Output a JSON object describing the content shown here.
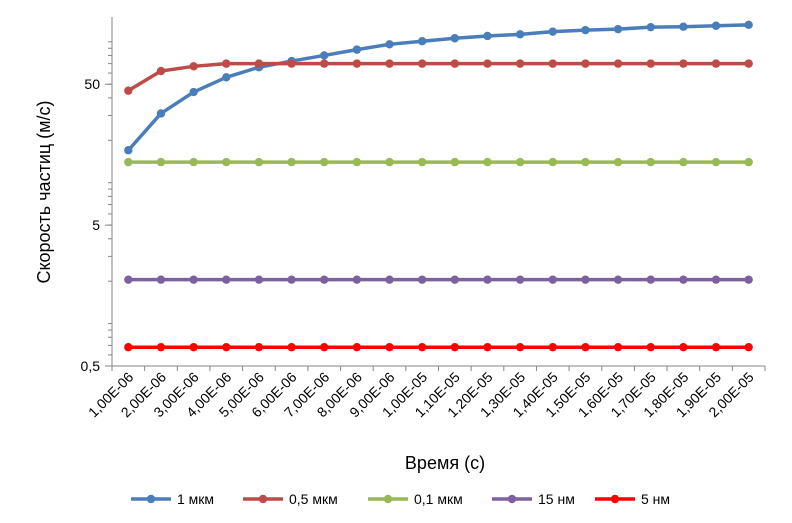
{
  "chart_data": {
    "type": "line",
    "title": "",
    "xlabel": "Время (с)",
    "ylabel": "Скорость частиц (м/с)",
    "yscale": "log",
    "ylim": [
      0.5,
      150
    ],
    "yticks": [
      {
        "value": 0.5,
        "label": "0,5"
      },
      {
        "value": 5,
        "label": "5"
      },
      {
        "value": 50,
        "label": "50"
      }
    ],
    "categories": [
      "1,00E-06",
      "2,00E-06",
      "3,00E-06",
      "4,00E-06",
      "5,00E-06",
      "6,00E-06",
      "7,00E-06",
      "8,00E-06",
      "9,00E-06",
      "1,00E-05",
      "1,10E-05",
      "1,20E-05",
      "1,30E-05",
      "1,40E-05",
      "1,50E-05",
      "1,60E-05",
      "1,70E-05",
      "1,80E-05",
      "1,90E-05",
      "2,00E-05"
    ],
    "series": [
      {
        "name": "1 мкм",
        "color": "#4a7ebb",
        "values": [
          17,
          31,
          44,
          56,
          66,
          73,
          80,
          88,
          96,
          101,
          106,
          110,
          113,
          118,
          121,
          123,
          127,
          128,
          130,
          132
        ]
      },
      {
        "name": "0,5 мкм",
        "color": "#be4b48",
        "values": [
          45,
          62,
          67,
          70,
          70,
          70,
          70,
          70,
          70,
          70,
          70,
          70,
          70,
          70,
          70,
          70,
          70,
          70,
          70,
          70
        ]
      },
      {
        "name": "0,1 мкм",
        "color": "#98b954",
        "values": [
          14,
          14,
          14,
          14,
          14,
          14,
          14,
          14,
          14,
          14,
          14,
          14,
          14,
          14,
          14,
          14,
          14,
          14,
          14,
          14
        ]
      },
      {
        "name": "15 нм",
        "color": "#7d60a0",
        "values": [
          2.05,
          2.05,
          2.05,
          2.05,
          2.05,
          2.05,
          2.05,
          2.05,
          2.05,
          2.05,
          2.05,
          2.05,
          2.05,
          2.05,
          2.05,
          2.05,
          2.05,
          2.05,
          2.05,
          2.05
        ]
      },
      {
        "name": "5 нм",
        "color": "#ff0000",
        "values": [
          0.68,
          0.68,
          0.68,
          0.68,
          0.68,
          0.68,
          0.68,
          0.68,
          0.68,
          0.68,
          0.68,
          0.68,
          0.68,
          0.68,
          0.68,
          0.68,
          0.68,
          0.68,
          0.68,
          0.68
        ]
      }
    ],
    "legend": "bottom",
    "grid": {
      "horizontal": false,
      "vertical": false
    }
  }
}
